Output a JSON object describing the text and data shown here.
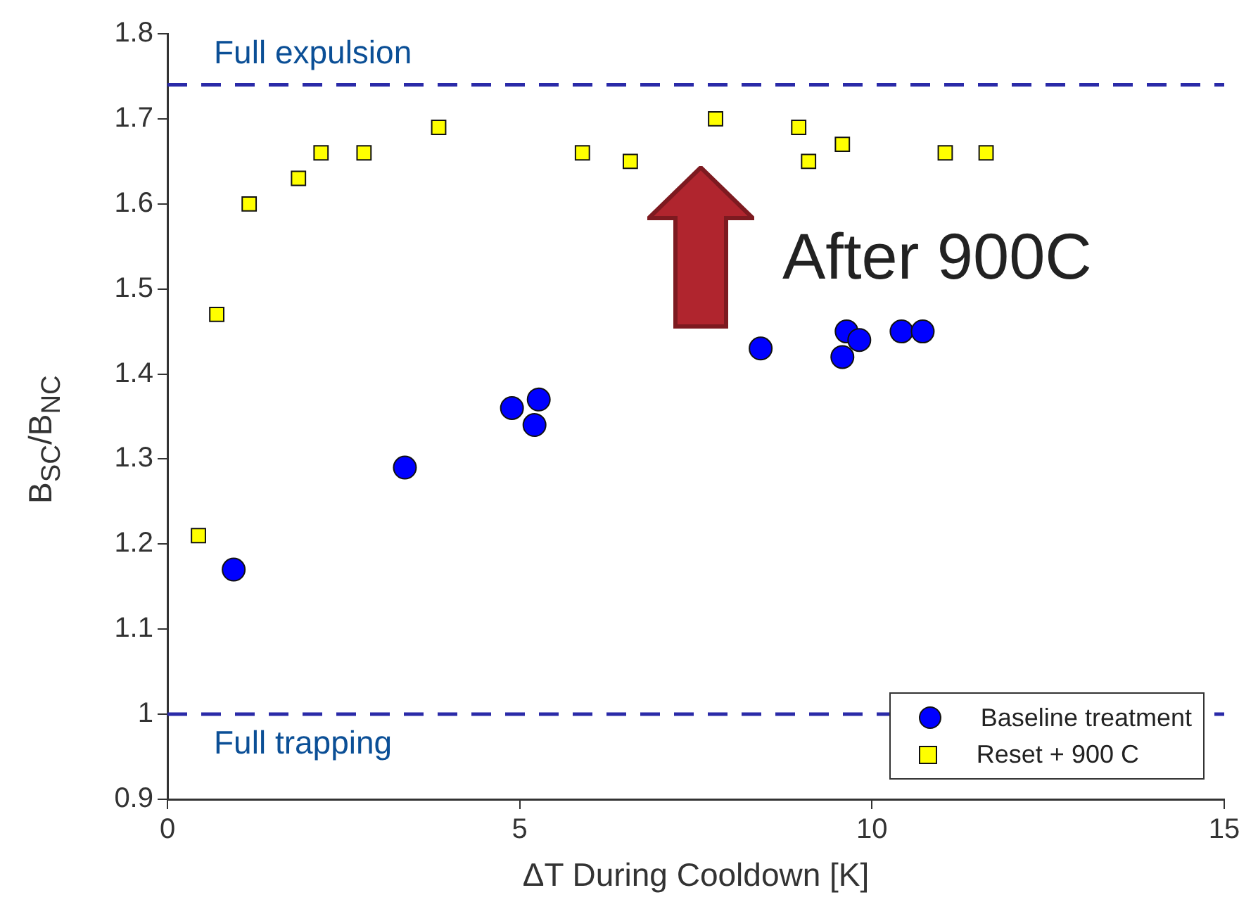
{
  "chart_data": {
    "type": "scatter",
    "xlabel": "ΔT During Cooldown [K]",
    "ylabel": "B$_{SC}$/B$_{NC}$",
    "xlim": [
      0,
      15
    ],
    "xticks": [
      0,
      5,
      10,
      15
    ],
    "ylim": [
      0.9,
      1.8
    ],
    "yticks": [
      0.9,
      1,
      1.1,
      1.2,
      1.3,
      1.4,
      1.5,
      1.6,
      1.7,
      1.8
    ],
    "grid": false,
    "legend": "bottom right",
    "series": [
      {
        "name": "Baseline treatment",
        "color": "#0000ff",
        "marker": "circle",
        "x": [
          0.94,
          3.37,
          4.89,
          5.27,
          5.21,
          8.42,
          9.64,
          9.82,
          9.58,
          10.42,
          10.72
        ],
        "values": [
          1.17,
          1.29,
          1.36,
          1.37,
          1.34,
          1.43,
          1.45,
          1.44,
          1.42,
          1.45,
          1.45
        ]
      },
      {
        "name": "Reset + 900 C",
        "color": "#ffff00",
        "marker": "square",
        "x": [
          0.44,
          0.7,
          1.16,
          1.86,
          2.18,
          2.79,
          3.85,
          5.89,
          6.57,
          7.78,
          8.96,
          9.1,
          9.58,
          11.04,
          11.62
        ],
        "values": [
          1.21,
          1.47,
          1.6,
          1.63,
          1.66,
          1.66,
          1.69,
          1.66,
          1.65,
          1.7,
          1.69,
          1.65,
          1.67,
          1.66,
          1.66
        ]
      }
    ],
    "ref_lines": [
      {
        "axis": "y",
        "value": 1.74,
        "label": "Full expulsion",
        "color": "#2a2aa8",
        "line_style": "dashed"
      },
      {
        "axis": "y",
        "value": 1,
        "label": "Full trapping",
        "color": "#2a2aa8",
        "line_style": "dashed"
      }
    ],
    "annotations": [
      "After 900C"
    ]
  }
}
